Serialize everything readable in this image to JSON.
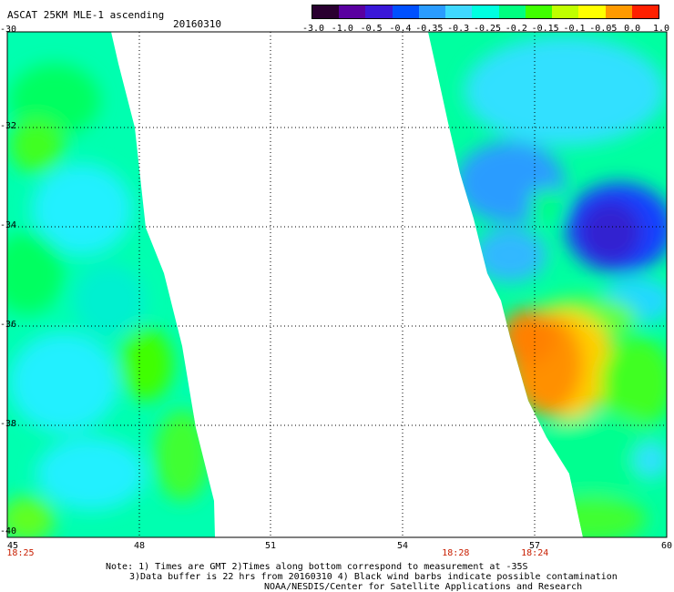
{
  "header": {
    "title": "ASCAT 25KM MLE-1 ascending",
    "date": "20160310"
  },
  "colorbar": {
    "labels": [
      "-3.0",
      "-1.0",
      "-0.5",
      "-0.4",
      "-0.35",
      "-0.3",
      "-0.25",
      "-0.2",
      "-0.15",
      "-0.1",
      "-0.05",
      "0.0",
      "1.0"
    ],
    "colors": [
      "#2a0030",
      "#5a00a0",
      "#3a18d8",
      "#0050ff",
      "#2a9cff",
      "#40d8ff",
      "#00ffe0",
      "#00ff80",
      "#40ff00",
      "#c0ff00",
      "#ffff00",
      "#ff9a00",
      "#ff2000"
    ]
  },
  "map": {
    "lat_labels": [
      "-30",
      "-32",
      "-34",
      "-36",
      "-38",
      "-40"
    ],
    "lon_labels": [
      "45",
      "48",
      "51",
      "54",
      "57",
      "60"
    ],
    "lat_range": [
      -30,
      -40
    ],
    "lon_range": [
      45,
      60
    ],
    "grid": true,
    "swath_times": [
      {
        "label": "18:25",
        "lon": 45.3
      },
      {
        "label": "18:28",
        "lon": 55.2
      },
      {
        "label": "18:24",
        "lon": 57.0
      }
    ]
  },
  "footer": {
    "line1": "Note: 1) Times are GMT 2)Times along bottom correspond to measurement at -35S",
    "line2": "3)Data buffer is 22 hrs from 20160310 4) Black wind barbs indicate possible contamination",
    "line3": "NOAA/NESDIS/Center for Satellite Applications and Research"
  }
}
